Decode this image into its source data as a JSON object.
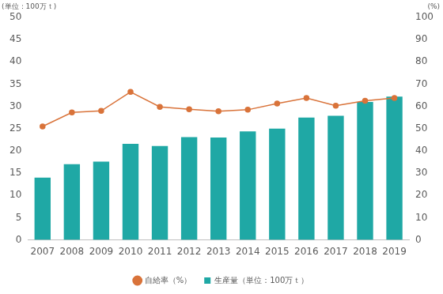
{
  "chart_data": {
    "type": "bar",
    "ylabel": "(単位：100万ｔ)",
    "y2label": "(%)",
    "categories": [
      "2007",
      "2008",
      "2009",
      "2010",
      "2011",
      "2012",
      "2013",
      "2014",
      "2015",
      "2016",
      "2017",
      "2018",
      "2019"
    ],
    "series": [
      {
        "name": "生産量（単位：100万ｔ）",
        "type": "bar",
        "color": "#1fa8a5",
        "values": [
          14.0,
          17.0,
          17.6,
          21.6,
          21.1,
          23.1,
          23.0,
          24.4,
          25.0,
          27.5,
          27.9,
          31.0,
          32.2
        ]
      },
      {
        "name": "自給率（%）",
        "type": "line",
        "color": "#d9733a",
        "axis": "y2",
        "marker": "circle",
        "values": [
          51.0,
          57.3,
          58.0,
          66.5,
          59.8,
          58.7,
          57.8,
          58.5,
          61.3,
          63.8,
          60.3,
          62.5,
          63.8
        ]
      }
    ],
    "ylim": [
      0,
      50
    ],
    "yticks": [
      0,
      5,
      10,
      15,
      20,
      25,
      30,
      35,
      40,
      45,
      50
    ],
    "y2lim": [
      0,
      100
    ],
    "y2ticks": [
      0,
      10,
      20,
      30,
      40,
      50,
      60,
      70,
      80,
      90,
      100
    ],
    "grid": false,
    "legend": "bottom"
  }
}
